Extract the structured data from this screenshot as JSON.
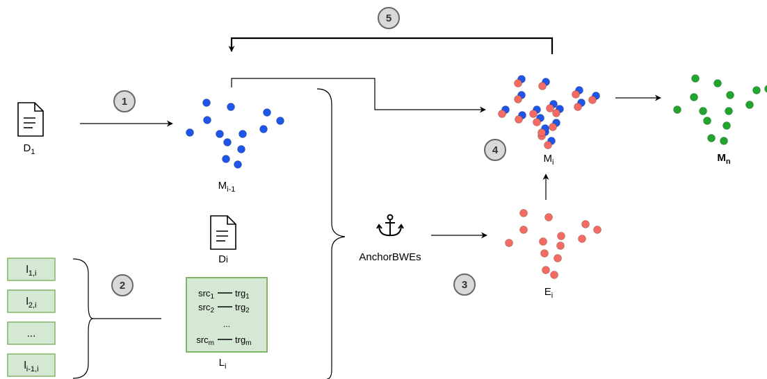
{
  "colors": {
    "blue": "#1f55e8",
    "red": "#f36b62",
    "green": "#22a52e",
    "lexicon_fill": "#d5e8d4",
    "lexicon_stroke": "#82b366",
    "step_fill": "#d9d9d9",
    "step_stroke": "#666666"
  },
  "icons": {
    "document": "document-icon",
    "anchor": "anchor-icon"
  },
  "steps": [
    "1",
    "2",
    "3",
    "4",
    "5"
  ],
  "labels": {
    "d1": {
      "main": "D",
      "sub": "1"
    },
    "m_prev": {
      "main": "M",
      "sub": "i-1"
    },
    "di": {
      "main": "D",
      "sub": "i"
    },
    "li": {
      "main": "L",
      "sub": "i"
    },
    "anchor": "AnchorBWEs",
    "ei": {
      "main": "E",
      "sub": "i"
    },
    "mi": {
      "main": "M",
      "sub": "i"
    },
    "mn": {
      "main": "M",
      "sub": "n"
    }
  },
  "lexicon_list": [
    {
      "main": "l",
      "sub": "1,i"
    },
    {
      "main": "l",
      "sub": "2,i"
    },
    {
      "main": "...",
      "sub": ""
    },
    {
      "main": "l",
      "sub": "i-1,i"
    }
  ],
  "lexicon_box": {
    "rows": [
      {
        "src": "src",
        "src_sub": "1",
        "trg": "trg",
        "trg_sub": "1"
      },
      {
        "src": "src",
        "src_sub": "2",
        "trg": "trg",
        "trg_sub": "2"
      },
      {
        "src": "src",
        "src_sub": "m",
        "trg": "trg",
        "trg_sub": "m"
      }
    ],
    "ellipsis": "..."
  }
}
